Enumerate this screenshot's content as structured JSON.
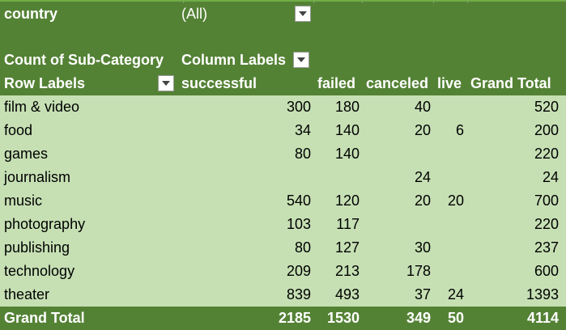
{
  "filter": {
    "field": "country",
    "value": "(All)"
  },
  "header": {
    "measure": "Count of Sub-Category",
    "column_labels": "Column Labels",
    "row_labels": "Row Labels",
    "columns": [
      "successful",
      "failed",
      "canceled",
      "live",
      "Grand Total"
    ]
  },
  "rows": [
    {
      "label": "film & video",
      "successful": "300",
      "failed": "180",
      "canceled": "40",
      "live": "",
      "total": "520"
    },
    {
      "label": "food",
      "successful": "34",
      "failed": "140",
      "canceled": "20",
      "live": "6",
      "total": "200"
    },
    {
      "label": "games",
      "successful": "80",
      "failed": "140",
      "canceled": "",
      "live": "",
      "total": "220"
    },
    {
      "label": "journalism",
      "successful": "",
      "failed": "",
      "canceled": "24",
      "live": "",
      "total": "24"
    },
    {
      "label": "music",
      "successful": "540",
      "failed": "120",
      "canceled": "20",
      "live": "20",
      "total": "700"
    },
    {
      "label": "photography",
      "successful": "103",
      "failed": "117",
      "canceled": "",
      "live": "",
      "total": "220"
    },
    {
      "label": "publishing",
      "successful": "80",
      "failed": "127",
      "canceled": "30",
      "live": "",
      "total": "237"
    },
    {
      "label": "technology",
      "successful": "209",
      "failed": "213",
      "canceled": "178",
      "live": "",
      "total": "600"
    },
    {
      "label": "theater",
      "successful": "839",
      "failed": "493",
      "canceled": "37",
      "live": "24",
      "total": "1393"
    }
  ],
  "grand_total": {
    "label": "Grand Total",
    "successful": "2185",
    "failed": "1530",
    "canceled": "349",
    "live": "50",
    "total": "4114"
  },
  "colors": {
    "header_green": "#548235",
    "row_green": "#c6e0b4"
  },
  "icons": {
    "dropdown": "chevron-down-icon",
    "filter_dropdown": "filter-dropdown-icon"
  }
}
